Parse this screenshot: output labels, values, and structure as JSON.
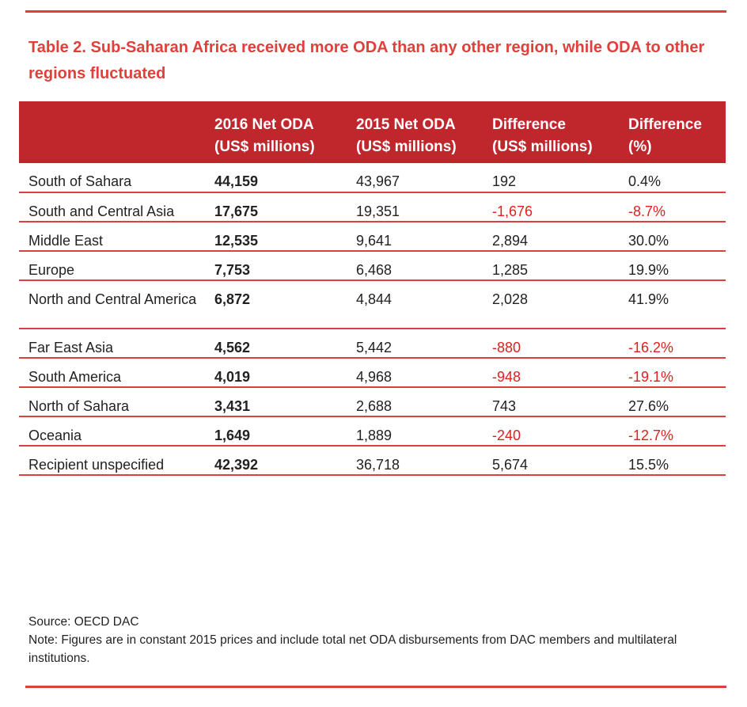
{
  "title": "Table 2. Sub-Saharan Africa received more ODA than any other region, while ODA to other regions fluctuated",
  "headers": {
    "region": "",
    "net2016": [
      "2016 Net ODA",
      "(US$ millions)"
    ],
    "net2015": [
      "2015 Net ODA",
      "(US$ millions)"
    ],
    "diff": [
      "Difference",
      "(US$ millions)"
    ],
    "diffpct": [
      "Difference",
      "(%)"
    ]
  },
  "rows": [
    {
      "region": "South of Sahara",
      "v2016": "44,159",
      "v2015": "43,967",
      "diff": "192",
      "pct": "0.4%",
      "negative": false
    },
    {
      "region": "South and Central Asia",
      "v2016": "17,675",
      "v2015": "19,351",
      "diff": "-1,676",
      "pct": "-8.7%",
      "negative": true
    },
    {
      "region": "Middle East",
      "v2016": "12,535",
      "v2015": "9,641",
      "diff": "2,894",
      "pct": "30.0%",
      "negative": false
    },
    {
      "region": "Europe",
      "v2016": "7,753",
      "v2015": "6,468",
      "diff": "1,285",
      "pct": "19.9%",
      "negative": false
    },
    {
      "region": "North and Central America",
      "v2016": "6,872",
      "v2015": "4,844",
      "diff": "2,028",
      "pct": "41.9%",
      "negative": false
    },
    {
      "region": "Far East Asia",
      "v2016": "4,562",
      "v2015": "5,442",
      "diff": "-880",
      "pct": "-16.2%",
      "negative": true
    },
    {
      "region": "South America",
      "v2016": "4,019",
      "v2015": "4,968",
      "diff": "-948",
      "pct": "-19.1%",
      "negative": true
    },
    {
      "region": "North of Sahara",
      "v2016": "3,431",
      "v2015": "2,688",
      "diff": "743",
      "pct": "27.6%",
      "negative": false
    },
    {
      "region": "Oceania",
      "v2016": "1,649",
      "v2015": "1,889",
      "diff": "-240",
      "pct": "-12.7%",
      "negative": true
    },
    {
      "region": "Recipient unspecified",
      "v2016": "42,392",
      "v2015": "36,718",
      "diff": "5,674",
      "pct": "15.5%",
      "negative": false
    }
  ],
  "source": "Source: OECD DAC",
  "note": "Note: Figures are in constant 2015 prices and include total net ODA disbursements from DAC members and multilateral institutions.",
  "colors": {
    "accent": "#c0272d",
    "title": "#e0403c",
    "negative": "#e0201e",
    "rule": "#d9403f"
  }
}
